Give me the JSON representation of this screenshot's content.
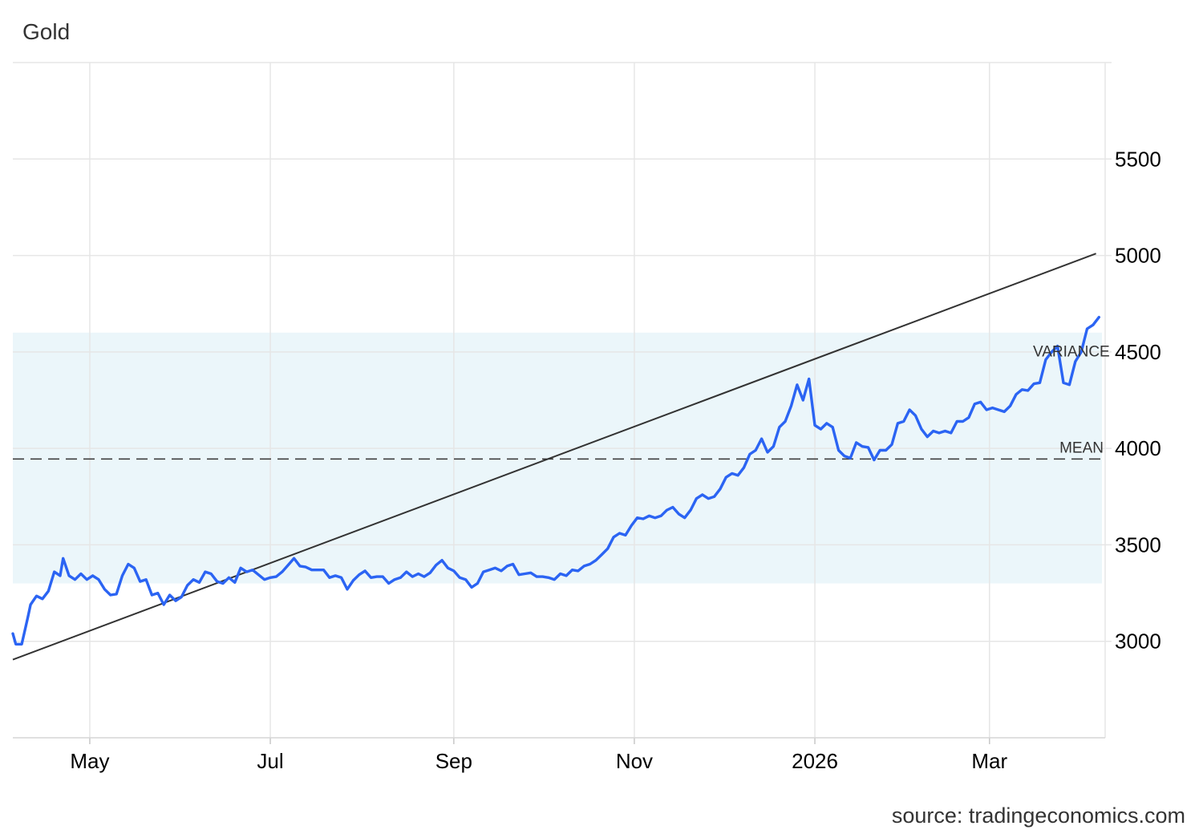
{
  "chart_data": {
    "type": "line",
    "title": "Gold",
    "source": "source: tradingeconomics.com",
    "x_tick_labels": [
      "May",
      "Jul",
      "Sep",
      "Nov",
      "2026",
      "Mar"
    ],
    "y_tick_labels": [
      "3000",
      "3500",
      "4000",
      "4500",
      "5000",
      "5500"
    ],
    "ylim": [
      2500,
      6000
    ],
    "xlim": [
      "2025-04-05",
      "2026-04-08"
    ],
    "grid": true,
    "x_ticks": [
      {
        "label": "May",
        "date": "2025-05-01"
      },
      {
        "label": "Jul",
        "date": "2025-07-01"
      },
      {
        "label": "Sep",
        "date": "2025-09-01"
      },
      {
        "label": "Nov",
        "date": "2025-11-01"
      },
      {
        "label": "2026",
        "date": "2026-01-01"
      },
      {
        "label": "Mar",
        "date": "2026-03-01"
      }
    ],
    "y_ticks": [
      3000,
      3500,
      4000,
      4500,
      5000,
      5500
    ],
    "mean": {
      "label": "MEAN",
      "value": 3945
    },
    "variance_band": {
      "label": "VARIANCE",
      "low": 3300,
      "high": 4600
    },
    "trend_line": {
      "start": {
        "date": "2025-04-05",
        "value": 2905
      },
      "end": {
        "date": "2026-04-06",
        "value": 5010
      }
    },
    "series": [
      {
        "color": "#2b64f3",
        "points": [
          [
            "2025-04-05",
            3040
          ],
          [
            "2025-04-06",
            2985
          ],
          [
            "2025-04-08",
            2985
          ],
          [
            "2025-04-10",
            3120
          ],
          [
            "2025-04-11",
            3190
          ],
          [
            "2025-04-13",
            3235
          ],
          [
            "2025-04-15",
            3220
          ],
          [
            "2025-04-17",
            3260
          ],
          [
            "2025-04-19",
            3360
          ],
          [
            "2025-04-21",
            3340
          ],
          [
            "2025-04-22",
            3430
          ],
          [
            "2025-04-24",
            3340
          ],
          [
            "2025-04-26",
            3320
          ],
          [
            "2025-04-28",
            3350
          ],
          [
            "2025-04-30",
            3320
          ],
          [
            "2025-05-02",
            3340
          ],
          [
            "2025-05-04",
            3320
          ],
          [
            "2025-05-06",
            3270
          ],
          [
            "2025-05-08",
            3240
          ],
          [
            "2025-05-10",
            3245
          ],
          [
            "2025-05-12",
            3340
          ],
          [
            "2025-05-14",
            3400
          ],
          [
            "2025-05-16",
            3380
          ],
          [
            "2025-05-18",
            3310
          ],
          [
            "2025-05-20",
            3320
          ],
          [
            "2025-05-22",
            3240
          ],
          [
            "2025-05-24",
            3250
          ],
          [
            "2025-05-26",
            3190
          ],
          [
            "2025-05-28",
            3240
          ],
          [
            "2025-05-30",
            3210
          ],
          [
            "2025-06-01",
            3230
          ],
          [
            "2025-06-03",
            3290
          ],
          [
            "2025-06-05",
            3320
          ],
          [
            "2025-06-07",
            3305
          ],
          [
            "2025-06-09",
            3360
          ],
          [
            "2025-06-11",
            3350
          ],
          [
            "2025-06-13",
            3310
          ],
          [
            "2025-06-15",
            3300
          ],
          [
            "2025-06-17",
            3330
          ],
          [
            "2025-06-19",
            3305
          ],
          [
            "2025-06-21",
            3380
          ],
          [
            "2025-06-23",
            3360
          ],
          [
            "2025-06-25",
            3370
          ],
          [
            "2025-06-27",
            3345
          ],
          [
            "2025-06-29",
            3320
          ],
          [
            "2025-07-01",
            3330
          ],
          [
            "2025-07-03",
            3335
          ],
          [
            "2025-07-05",
            3360
          ],
          [
            "2025-07-07",
            3395
          ],
          [
            "2025-07-09",
            3430
          ],
          [
            "2025-07-11",
            3390
          ],
          [
            "2025-07-13",
            3385
          ],
          [
            "2025-07-15",
            3370
          ],
          [
            "2025-07-17",
            3370
          ],
          [
            "2025-07-19",
            3370
          ],
          [
            "2025-07-21",
            3330
          ],
          [
            "2025-07-23",
            3340
          ],
          [
            "2025-07-25",
            3330
          ],
          [
            "2025-07-27",
            3270
          ],
          [
            "2025-07-29",
            3315
          ],
          [
            "2025-07-31",
            3345
          ],
          [
            "2025-08-02",
            3365
          ],
          [
            "2025-08-04",
            3330
          ],
          [
            "2025-08-06",
            3335
          ],
          [
            "2025-08-08",
            3335
          ],
          [
            "2025-08-10",
            3300
          ],
          [
            "2025-08-12",
            3320
          ],
          [
            "2025-08-14",
            3330
          ],
          [
            "2025-08-16",
            3360
          ],
          [
            "2025-08-18",
            3335
          ],
          [
            "2025-08-20",
            3350
          ],
          [
            "2025-08-22",
            3335
          ],
          [
            "2025-08-24",
            3355
          ],
          [
            "2025-08-26",
            3395
          ],
          [
            "2025-08-28",
            3420
          ],
          [
            "2025-08-30",
            3380
          ],
          [
            "2025-09-01",
            3365
          ],
          [
            "2025-09-03",
            3330
          ],
          [
            "2025-09-05",
            3320
          ],
          [
            "2025-09-07",
            3280
          ],
          [
            "2025-09-09",
            3300
          ],
          [
            "2025-09-11",
            3360
          ],
          [
            "2025-09-13",
            3370
          ],
          [
            "2025-09-15",
            3380
          ],
          [
            "2025-09-17",
            3365
          ],
          [
            "2025-09-19",
            3390
          ],
          [
            "2025-09-21",
            3400
          ],
          [
            "2025-09-23",
            3345
          ],
          [
            "2025-09-25",
            3350
          ],
          [
            "2025-09-27",
            3355
          ],
          [
            "2025-09-29",
            3335
          ],
          [
            "2025-10-01",
            3335
          ],
          [
            "2025-10-03",
            3330
          ],
          [
            "2025-10-05",
            3320
          ],
          [
            "2025-10-07",
            3350
          ],
          [
            "2025-10-09",
            3340
          ],
          [
            "2025-10-11",
            3370
          ],
          [
            "2025-10-13",
            3365
          ],
          [
            "2025-10-15",
            3390
          ],
          [
            "2025-10-17",
            3400
          ],
          [
            "2025-10-19",
            3420
          ],
          [
            "2025-10-21",
            3450
          ],
          [
            "2025-10-23",
            3480
          ],
          [
            "2025-10-25",
            3540
          ],
          [
            "2025-10-27",
            3560
          ],
          [
            "2025-10-29",
            3550
          ],
          [
            "2025-10-31",
            3600
          ],
          [
            "2025-11-02",
            3640
          ],
          [
            "2025-11-04",
            3635
          ],
          [
            "2025-11-06",
            3650
          ],
          [
            "2025-11-08",
            3640
          ],
          [
            "2025-11-10",
            3650
          ],
          [
            "2025-11-12",
            3680
          ],
          [
            "2025-11-14",
            3695
          ],
          [
            "2025-11-16",
            3660
          ],
          [
            "2025-11-18",
            3640
          ],
          [
            "2025-11-20",
            3680
          ],
          [
            "2025-11-22",
            3740
          ],
          [
            "2025-11-24",
            3760
          ],
          [
            "2025-11-26",
            3740
          ],
          [
            "2025-11-28",
            3750
          ],
          [
            "2025-11-30",
            3790
          ],
          [
            "2025-12-02",
            3850
          ],
          [
            "2025-12-04",
            3870
          ],
          [
            "2025-12-06",
            3860
          ],
          [
            "2025-12-08",
            3900
          ],
          [
            "2025-12-10",
            3970
          ],
          [
            "2025-12-12",
            3990
          ],
          [
            "2025-12-14",
            4050
          ],
          [
            "2025-12-16",
            3980
          ],
          [
            "2025-12-18",
            4010
          ],
          [
            "2025-12-20",
            4110
          ],
          [
            "2025-12-22",
            4140
          ],
          [
            "2025-12-24",
            4220
          ],
          [
            "2025-12-26",
            4330
          ],
          [
            "2025-12-28",
            4250
          ],
          [
            "2025-12-30",
            4360
          ],
          [
            "2026-01-01",
            4120
          ],
          [
            "2026-01-03",
            4100
          ],
          [
            "2026-01-05",
            4130
          ],
          [
            "2026-01-07",
            4110
          ],
          [
            "2026-01-09",
            3990
          ],
          [
            "2026-01-11",
            3960
          ],
          [
            "2026-01-13",
            3950
          ],
          [
            "2026-01-15",
            4030
          ],
          [
            "2026-01-17",
            4010
          ],
          [
            "2026-01-19",
            4005
          ],
          [
            "2026-01-21",
            3940
          ],
          [
            "2026-01-23",
            3990
          ],
          [
            "2026-01-25",
            3990
          ],
          [
            "2026-01-27",
            4020
          ],
          [
            "2026-01-29",
            4130
          ],
          [
            "2026-01-31",
            4140
          ],
          [
            "2026-02-02",
            4200
          ],
          [
            "2026-02-04",
            4170
          ],
          [
            "2026-02-06",
            4100
          ],
          [
            "2026-02-08",
            4060
          ],
          [
            "2026-02-10",
            4090
          ],
          [
            "2026-02-12",
            4080
          ],
          [
            "2026-02-14",
            4090
          ],
          [
            "2026-02-16",
            4080
          ],
          [
            "2026-02-18",
            4140
          ],
          [
            "2026-02-20",
            4140
          ],
          [
            "2026-02-22",
            4160
          ],
          [
            "2026-02-24",
            4230
          ],
          [
            "2026-02-26",
            4240
          ],
          [
            "2026-02-28",
            4200
          ],
          [
            "2026-03-02",
            4210
          ],
          [
            "2026-03-04",
            4200
          ],
          [
            "2026-03-06",
            4190
          ],
          [
            "2026-03-08",
            4220
          ],
          [
            "2026-03-10",
            4280
          ],
          [
            "2026-03-12",
            4305
          ],
          [
            "2026-03-14",
            4300
          ],
          [
            "2026-03-16",
            4335
          ],
          [
            "2026-03-18",
            4340
          ],
          [
            "2026-03-20",
            4460
          ],
          [
            "2026-03-22",
            4500
          ],
          [
            "2026-03-24",
            4530
          ],
          [
            "2026-03-26",
            4340
          ],
          [
            "2026-03-28",
            4330
          ],
          [
            "2026-03-30",
            4450
          ],
          [
            "2026-04-01",
            4500
          ],
          [
            "2026-04-03",
            4620
          ],
          [
            "2026-04-05",
            4640
          ],
          [
            "2026-04-07",
            4680
          ]
        ]
      }
    ]
  }
}
